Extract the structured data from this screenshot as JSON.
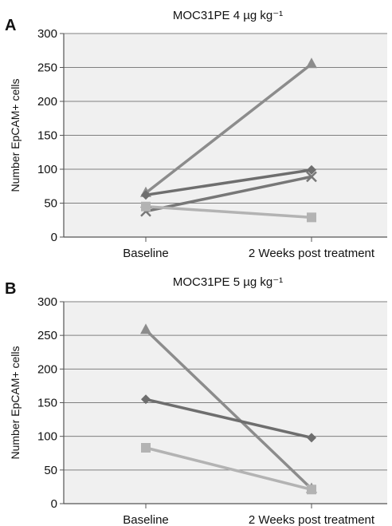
{
  "chart_data": [
    {
      "type": "line",
      "panel": "A",
      "title": "MOC31PE 4 µg kg⁻¹",
      "ylabel": "Number EpCAM+ cells",
      "xlabel": "",
      "categories": [
        "Baseline",
        "2 Weeks post treatment"
      ],
      "ylim": [
        0,
        300
      ],
      "yticks": [
        0,
        50,
        100,
        150,
        200,
        250,
        300
      ],
      "grid": true,
      "series": [
        {
          "marker": "triangle",
          "color": "#8c8c8c",
          "values": [
            65,
            255
          ]
        },
        {
          "marker": "diamond",
          "color": "#6e6e6e",
          "values": [
            62,
            99
          ]
        },
        {
          "marker": "x",
          "color": "#777777",
          "values": [
            38,
            89
          ]
        },
        {
          "marker": "square",
          "color": "#b3b3b3",
          "values": [
            45,
            29
          ]
        }
      ]
    },
    {
      "type": "line",
      "panel": "B",
      "title": "MOC31PE 5 µg kg⁻¹",
      "ylabel": "Number EpCAM+ cells",
      "xlabel": "",
      "categories": [
        "Baseline",
        "2 Weeks post treatment"
      ],
      "ylim": [
        0,
        300
      ],
      "yticks": [
        0,
        50,
        100,
        150,
        200,
        250,
        300
      ],
      "grid": true,
      "series": [
        {
          "marker": "triangle",
          "color": "#8c8c8c",
          "values": [
            258,
            22
          ]
        },
        {
          "marker": "diamond",
          "color": "#6e6e6e",
          "values": [
            155,
            98
          ]
        },
        {
          "marker": "square",
          "color": "#b3b3b3",
          "values": [
            83,
            21
          ]
        }
      ]
    }
  ]
}
